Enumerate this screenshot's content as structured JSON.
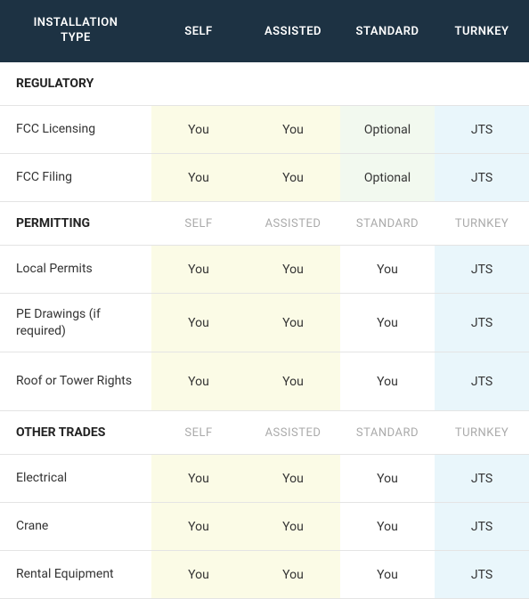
{
  "colors": {
    "header_bg": "#1d3243",
    "header_fg": "#ffffff",
    "border": "#e4e4e4",
    "label_fg": "#333333",
    "subheader_fg": "#aaaaaa",
    "you_bg": "#fbfbe6",
    "opt_bg": "#f2f9ef",
    "jts_bg": "#e9f6fb",
    "plain_bg": "#ffffff"
  },
  "header": {
    "title_line1": "INSTALLATION",
    "title_line2": "TYPE",
    "cols": [
      "SELF",
      "ASSISTED",
      "STANDARD",
      "TURNKEY"
    ]
  },
  "sections": [
    {
      "name": "REGULATORY",
      "show_subheaders": false,
      "rows": [
        {
          "label": "FCC Licensing",
          "tall": false,
          "cells": [
            {
              "text": "You",
              "style": "you"
            },
            {
              "text": "You",
              "style": "you"
            },
            {
              "text": "Optional",
              "style": "opt"
            },
            {
              "text": "JTS",
              "style": "jts"
            }
          ]
        },
        {
          "label": "FCC Filing",
          "tall": false,
          "cells": [
            {
              "text": "You",
              "style": "you"
            },
            {
              "text": "You",
              "style": "you"
            },
            {
              "text": "Optional",
              "style": "opt"
            },
            {
              "text": "JTS",
              "style": "jts"
            }
          ]
        }
      ]
    },
    {
      "name": "PERMITTING",
      "show_subheaders": true,
      "rows": [
        {
          "label": "Local Permits",
          "tall": false,
          "cells": [
            {
              "text": "You",
              "style": "you"
            },
            {
              "text": "You",
              "style": "you"
            },
            {
              "text": "You",
              "style": "plain"
            },
            {
              "text": "JTS",
              "style": "jts"
            }
          ]
        },
        {
          "label": "PE Drawings (if required)",
          "tall": true,
          "cells": [
            {
              "text": "You",
              "style": "you"
            },
            {
              "text": "You",
              "style": "you"
            },
            {
              "text": "You",
              "style": "plain"
            },
            {
              "text": "JTS",
              "style": "jts"
            }
          ]
        },
        {
          "label": "Roof or Tower Rights",
          "tall": true,
          "cells": [
            {
              "text": "You",
              "style": "you"
            },
            {
              "text": "You",
              "style": "you"
            },
            {
              "text": "You",
              "style": "plain"
            },
            {
              "text": "JTS",
              "style": "jts"
            }
          ]
        }
      ]
    },
    {
      "name": "OTHER TRADES",
      "show_subheaders": true,
      "rows": [
        {
          "label": "Electrical",
          "tall": false,
          "cells": [
            {
              "text": "You",
              "style": "you"
            },
            {
              "text": "You",
              "style": "you"
            },
            {
              "text": "You",
              "style": "plain"
            },
            {
              "text": "JTS",
              "style": "jts"
            }
          ]
        },
        {
          "label": "Crane",
          "tall": false,
          "cells": [
            {
              "text": "You",
              "style": "you"
            },
            {
              "text": "You",
              "style": "you"
            },
            {
              "text": "You",
              "style": "plain"
            },
            {
              "text": "JTS",
              "style": "jts"
            }
          ]
        },
        {
          "label": "Rental Equipment",
          "tall": false,
          "cells": [
            {
              "text": "You",
              "style": "you"
            },
            {
              "text": "You",
              "style": "you"
            },
            {
              "text": "You",
              "style": "plain"
            },
            {
              "text": "JTS",
              "style": "jts"
            }
          ]
        }
      ]
    }
  ]
}
